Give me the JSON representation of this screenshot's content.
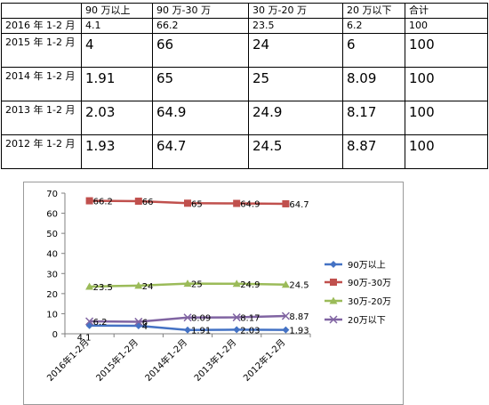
{
  "table": {
    "header": [
      "",
      "90 万以上",
      "90 万-30 万",
      "30 万-20 万",
      "20 万以下",
      "合计"
    ],
    "rows": [
      [
        "2016 年 1-2 月",
        "4.1",
        "66.2",
        "23.5",
        "6.2",
        "100"
      ],
      [
        "2015 年 1-2 月",
        "4",
        "66",
        "24",
        "6",
        "100"
      ],
      [
        "2014 年 1-2 月",
        "1.91",
        "65",
        "25",
        "8.09",
        "100"
      ],
      [
        "2013 年 1-2 月",
        "2.03",
        "64.9",
        "24.9",
        "8.17",
        "100"
      ],
      [
        "2012 年 1-2 月",
        "1.93",
        "64.7",
        "24.5",
        "8.87",
        "100"
      ]
    ]
  },
  "chart_data": {
    "type": "line",
    "categories": [
      "2016年1-2月",
      "2015年1-2月",
      "2014年1-2月",
      "2013年1-2月",
      "2012年1-2月"
    ],
    "ylim": [
      0,
      70
    ],
    "yticks": [
      0,
      10,
      20,
      30,
      40,
      50,
      60,
      70
    ],
    "grid": false,
    "legend_position": "right",
    "series": [
      {
        "name": "90万以上",
        "values": [
          4.1,
          4,
          1.91,
          2.03,
          1.93
        ],
        "color": "#4472c4",
        "marker": "diamond"
      },
      {
        "name": "90万-30万",
        "values": [
          66.2,
          66,
          65,
          64.9,
          64.7
        ],
        "color": "#c0504d",
        "marker": "square"
      },
      {
        "name": "30万-20万",
        "values": [
          23.5,
          24,
          25,
          24.9,
          24.5
        ],
        "color": "#9bbb59",
        "marker": "triangle"
      },
      {
        "name": "20万以下",
        "values": [
          6.2,
          6,
          8.09,
          8.17,
          8.87
        ],
        "color": "#8064a2",
        "marker": "x"
      }
    ]
  }
}
